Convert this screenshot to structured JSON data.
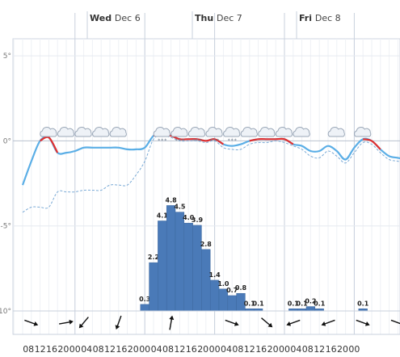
{
  "days": [
    {
      "weekday": "Wed",
      "date": "Dec 6"
    },
    {
      "weekday": "Thu",
      "date": "Dec 7"
    },
    {
      "weekday": "Fri",
      "date": "Dec 8"
    }
  ],
  "hour_ticks": [
    "08",
    "12",
    "16",
    "20",
    "00",
    "04",
    "08",
    "12",
    "16",
    "20",
    "00",
    "04",
    "08",
    "12",
    "16",
    "20",
    "00",
    "04",
    "08",
    "12",
    "16",
    "20",
    "00",
    "04",
    "08",
    "12",
    "16",
    "20",
    "00"
  ],
  "chart_data": {
    "type": "bar",
    "title": "",
    "xlabel": "",
    "ylabel": "",
    "y_ticks": [
      "5°",
      "0°",
      "-5°",
      "-10°"
    ],
    "ylim": [
      -10,
      6
    ],
    "x_start_hour": 6,
    "step_hours": 3,
    "series": [
      {
        "name": "Precipitation",
        "kind": "bar",
        "color": "#4a7ab8",
        "start_index": 14,
        "values": [
          0.3,
          2.2,
          4.1,
          4.8,
          4.5,
          4.0,
          3.9,
          2.8,
          1.4,
          1.0,
          0.7,
          0.8,
          0.1,
          0.1,
          0,
          0,
          0,
          0.1,
          0.1,
          0.2,
          0.1,
          0,
          0,
          0,
          0,
          0.1
        ]
      },
      {
        "name": "Temperature",
        "kind": "line",
        "color": "#5aaee6",
        "warm_color": "#e03030",
        "values": [
          -2.6,
          -1.2,
          0.0,
          0.2,
          -0.7,
          -0.7,
          -0.6,
          -0.4,
          -0.4,
          -0.4,
          -0.4,
          -0.4,
          -0.5,
          -0.5,
          -0.4,
          0.3,
          0.4,
          0.3,
          0.1,
          0.1,
          0.1,
          0.0,
          0.1,
          -0.2,
          -0.3,
          -0.2,
          0.0,
          0.1,
          0.1,
          0.1,
          0.1,
          -0.2,
          -0.3,
          -0.6,
          -0.6,
          -0.3,
          -0.6,
          -1.1,
          -0.4,
          0.1,
          0.0,
          -0.5,
          -0.9,
          -1.0,
          -1.1
        ]
      },
      {
        "name": "Feels like",
        "kind": "dashed-line",
        "color": "#7aaad6",
        "values": [
          -4.2,
          -3.9,
          -3.9,
          -3.9,
          -3.0,
          -3.0,
          -3.0,
          -2.9,
          -2.9,
          -2.9,
          -2.6,
          -2.6,
          -2.6,
          -2.0,
          -1.2,
          0.1,
          0.3,
          0.2,
          0.0,
          0.0,
          0.0,
          -0.1,
          0.0,
          -0.4,
          -0.5,
          -0.5,
          -0.2,
          -0.1,
          -0.1,
          0.0,
          -0.1,
          -0.3,
          -0.5,
          -0.9,
          -1.0,
          -0.6,
          -0.9,
          -1.3,
          -0.7,
          -0.1,
          -0.2,
          -0.7,
          -1.1,
          -1.2,
          -1.3
        ]
      }
    ],
    "weather_icons": [
      {
        "index": 3,
        "icon": "cloud-icon"
      },
      {
        "index": 5,
        "icon": "cloud-icon"
      },
      {
        "index": 7,
        "icon": "cloud-icon"
      },
      {
        "index": 9,
        "icon": "cloud-icon"
      },
      {
        "index": 11,
        "icon": "cloud-icon"
      },
      {
        "index": 16,
        "icon": "snow-cloud-icon"
      },
      {
        "index": 18,
        "icon": "snow-cloud-icon"
      },
      {
        "index": 20,
        "icon": "snow-cloud-icon"
      },
      {
        "index": 22,
        "icon": "snow-cloud-icon"
      },
      {
        "index": 24,
        "icon": "snow-cloud-icon"
      },
      {
        "index": 26,
        "icon": "cloud-icon"
      },
      {
        "index": 28,
        "icon": "cloud-icon"
      },
      {
        "index": 30,
        "icon": "cloud-icon"
      },
      {
        "index": 32,
        "icon": "cloud-icon"
      },
      {
        "index": 36,
        "icon": "cloud-icon"
      },
      {
        "index": 39,
        "icon": "cloud-icon"
      }
    ],
    "wind": [
      {
        "index": 1,
        "direction_deg": 110
      },
      {
        "index": 5,
        "direction_deg": 80
      },
      {
        "index": 7,
        "direction_deg": 220
      },
      {
        "index": 11,
        "direction_deg": 200
      },
      {
        "index": 17,
        "direction_deg": 10
      },
      {
        "index": 24,
        "direction_deg": 110
      },
      {
        "index": 28,
        "direction_deg": 130
      },
      {
        "index": 31,
        "direction_deg": 250
      },
      {
        "index": 35,
        "direction_deg": 250
      },
      {
        "index": 39,
        "direction_deg": 110
      },
      {
        "index": 43,
        "direction_deg": 110
      }
    ]
  }
}
